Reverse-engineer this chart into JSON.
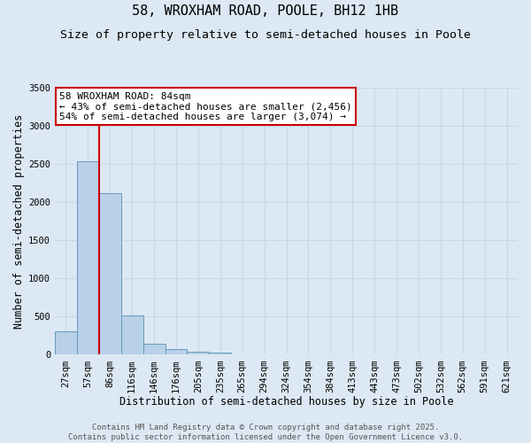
{
  "title_line1": "58, WROXHAM ROAD, POOLE, BH12 1HB",
  "title_line2": "Size of property relative to semi-detached houses in Poole",
  "xlabel": "Distribution of semi-detached houses by size in Poole",
  "ylabel": "Number of semi-detached properties",
  "categories": [
    "27sqm",
    "57sqm",
    "86sqm",
    "116sqm",
    "146sqm",
    "176sqm",
    "205sqm",
    "235sqm",
    "265sqm",
    "294sqm",
    "324sqm",
    "354sqm",
    "384sqm",
    "413sqm",
    "443sqm",
    "473sqm",
    "502sqm",
    "532sqm",
    "562sqm",
    "591sqm",
    "621sqm"
  ],
  "values": [
    310,
    2540,
    2120,
    520,
    150,
    70,
    35,
    30,
    0,
    0,
    0,
    0,
    0,
    0,
    0,
    0,
    0,
    0,
    0,
    0,
    0
  ],
  "bar_color": "#b8d0e8",
  "bar_edge_color": "#6699bb",
  "vline_color": "#cc0000",
  "vline_x_index": 2,
  "annotation_line1": "58 WROXHAM ROAD: 84sqm",
  "annotation_line2": "← 43% of semi-detached houses are smaller (2,456)",
  "annotation_line3": "54% of semi-detached houses are larger (3,074) →",
  "annotation_box_facecolor": "#ffffff",
  "annotation_box_edgecolor": "#cc0000",
  "ylim": [
    0,
    3500
  ],
  "yticks": [
    0,
    500,
    1000,
    1500,
    2000,
    2500,
    3000,
    3500
  ],
  "grid_color": "#c8d8e8",
  "background_color": "#dce8f4",
  "plot_bg_color": "#dce8f4",
  "title1_fontsize": 11,
  "title2_fontsize": 9.5,
  "axis_label_fontsize": 8.5,
  "tick_fontsize": 7.5,
  "annotation_fontsize": 8,
  "footer_fontsize": 6.5,
  "footer_line1": "Contains HM Land Registry data © Crown copyright and database right 2025.",
  "footer_line2": "Contains public sector information licensed under the Open Government Licence v3.0."
}
